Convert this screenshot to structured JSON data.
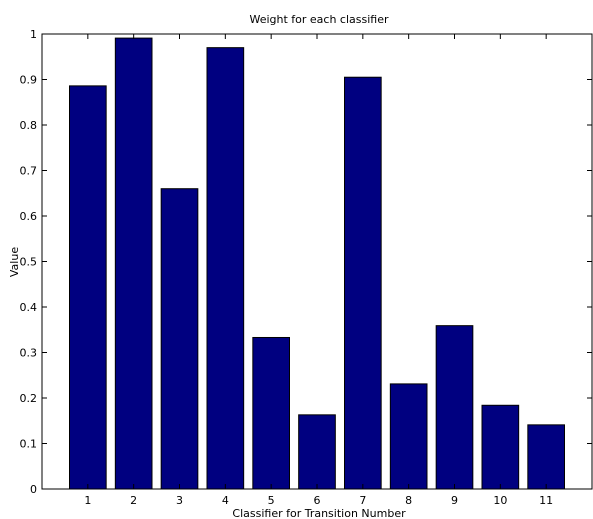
{
  "chart_data": {
    "type": "bar",
    "title": "Weight for each classifier",
    "xlabel": "Classifier for Transition Number",
    "ylabel": "Value",
    "categories": [
      "1",
      "2",
      "3",
      "4",
      "5",
      "6",
      "7",
      "8",
      "9",
      "10",
      "11"
    ],
    "values": [
      0.886,
      0.991,
      0.66,
      0.97,
      0.333,
      0.163,
      0.905,
      0.231,
      0.359,
      0.184,
      0.141
    ],
    "ylim": [
      0,
      1
    ],
    "yticks": [
      "0",
      "0.1",
      "0.2",
      "0.3",
      "0.4",
      "0.5",
      "0.6",
      "0.7",
      "0.8",
      "0.9",
      "1"
    ],
    "xlim": [
      0,
      12
    ],
    "grid": false,
    "bar_color": "#000080",
    "axes_color": "#000000"
  }
}
